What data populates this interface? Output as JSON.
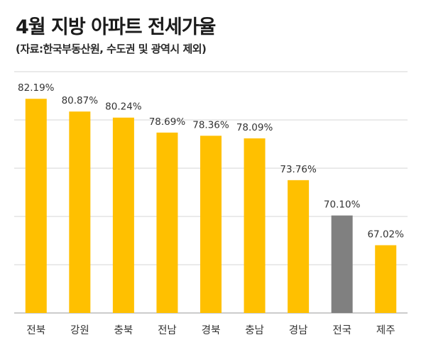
{
  "chart_data": {
    "type": "bar",
    "title": "4월 지방 아파트 전세가율",
    "subtitle": "(자료:한국부동산원, 수도권 및 광역시 제외)",
    "categories": [
      "전북",
      "강원",
      "충북",
      "전남",
      "경북",
      "충남",
      "경남",
      "전국",
      "제주"
    ],
    "values": [
      82.19,
      80.87,
      80.24,
      78.69,
      78.36,
      78.09,
      73.76,
      70.1,
      67.02
    ],
    "value_labels": [
      "82.19%",
      "80.87%",
      "80.24%",
      "78.69%",
      "78.36%",
      "78.09%",
      "73.76%",
      "70.10%",
      "67.02%"
    ],
    "colors": [
      "#FFC000",
      "#FFC000",
      "#FFC000",
      "#FFC000",
      "#FFC000",
      "#FFC000",
      "#FFC000",
      "#808080",
      "#FFC000"
    ],
    "ylim": [
      60,
      85
    ],
    "grid": true,
    "legend": "none"
  }
}
